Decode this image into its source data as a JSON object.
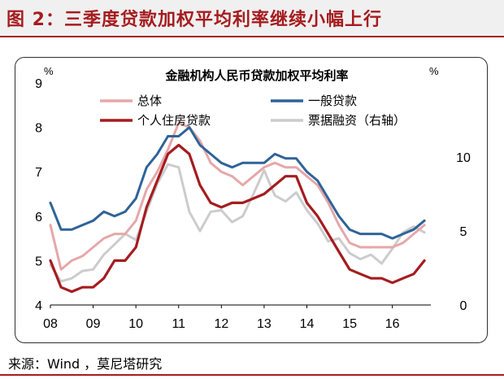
{
  "figure_title": "图 2：三季度贷款加权平均利率继续小幅上行",
  "source": "来源：Wind ，莫尼塔研究",
  "colors": {
    "header_accent": "#a51c1f",
    "total": "#e6a7a9",
    "general_loans": "#2f6399",
    "personal_housing": "#a51c1f",
    "bills": "#cccccc"
  },
  "chart_data": {
    "type": "line",
    "title": "金融机构人民币贷款加权平均利率",
    "left_unit": "%",
    "right_unit": "%",
    "ylim_left": [
      4,
      9
    ],
    "ylim_right": [
      0,
      15
    ],
    "yticks_left": [
      "4",
      "5",
      "6",
      "7",
      "8",
      "9"
    ],
    "yticks_right": [
      "0",
      "5",
      "10"
    ],
    "xlim": [
      2008.0,
      2016.9
    ],
    "xticks": [
      "08",
      "09",
      "10",
      "11",
      "12",
      "13",
      "14",
      "15",
      "16"
    ],
    "grid": false,
    "legend_position": "top",
    "series": [
      {
        "name": "总体",
        "axis": "left",
        "color_key": "total",
        "x": [
          2008.0,
          2008.25,
          2008.5,
          2008.75,
          2009.0,
          2009.25,
          2009.5,
          2009.75,
          2010.0,
          2010.25,
          2010.5,
          2010.75,
          2011.0,
          2011.25,
          2011.5,
          2011.75,
          2012.0,
          2012.25,
          2012.5,
          2012.75,
          2013.0,
          2013.25,
          2013.5,
          2013.75,
          2014.0,
          2014.25,
          2014.5,
          2014.75,
          2015.0,
          2015.25,
          2015.5,
          2015.75,
          2016.0,
          2016.25,
          2016.5,
          2016.75
        ],
        "values": [
          5.8,
          4.8,
          5.0,
          5.1,
          5.3,
          5.5,
          5.6,
          5.6,
          5.9,
          6.6,
          7.0,
          7.5,
          8.1,
          8.0,
          7.7,
          7.2,
          7.0,
          6.9,
          6.7,
          6.9,
          7.1,
          7.2,
          7.1,
          7.1,
          6.9,
          6.7,
          6.3,
          5.8,
          5.4,
          5.3,
          5.3,
          5.3,
          5.3,
          5.4,
          5.6,
          5.8
        ]
      },
      {
        "name": "一般贷款",
        "axis": "left",
        "color_key": "general_loans",
        "x": [
          2008.0,
          2008.25,
          2008.5,
          2008.75,
          2009.0,
          2009.25,
          2009.5,
          2009.75,
          2010.0,
          2010.25,
          2010.5,
          2010.75,
          2011.0,
          2011.25,
          2011.5,
          2011.75,
          2012.0,
          2012.25,
          2012.5,
          2012.75,
          2013.0,
          2013.25,
          2013.5,
          2013.75,
          2014.0,
          2014.25,
          2014.5,
          2014.75,
          2015.0,
          2015.25,
          2015.5,
          2015.75,
          2016.0,
          2016.25,
          2016.5,
          2016.75
        ],
        "values": [
          6.3,
          5.7,
          5.7,
          5.8,
          5.9,
          6.1,
          6.0,
          6.1,
          6.4,
          7.1,
          7.4,
          7.8,
          7.8,
          8.0,
          7.6,
          7.4,
          7.2,
          7.1,
          7.2,
          7.2,
          7.2,
          7.4,
          7.3,
          7.3,
          7.0,
          6.8,
          6.4,
          6.0,
          5.7,
          5.6,
          5.6,
          5.6,
          5.5,
          5.6,
          5.7,
          5.9
        ]
      },
      {
        "name": "个人住房贷款",
        "axis": "left",
        "color_key": "personal_housing",
        "x": [
          2008.0,
          2008.25,
          2008.5,
          2008.75,
          2009.0,
          2009.25,
          2009.5,
          2009.75,
          2010.0,
          2010.25,
          2010.5,
          2010.75,
          2011.0,
          2011.25,
          2011.5,
          2011.75,
          2012.0,
          2012.25,
          2012.5,
          2012.75,
          2013.0,
          2013.25,
          2013.5,
          2013.75,
          2014.0,
          2014.25,
          2014.5,
          2014.75,
          2015.0,
          2015.25,
          2015.5,
          2015.75,
          2016.0,
          2016.25,
          2016.5,
          2016.75
        ],
        "values": [
          5.0,
          4.4,
          4.3,
          4.4,
          4.4,
          4.6,
          5.0,
          5.0,
          5.3,
          6.2,
          6.8,
          7.4,
          7.6,
          7.4,
          6.7,
          6.3,
          6.2,
          6.3,
          6.3,
          6.4,
          6.5,
          6.7,
          6.9,
          6.9,
          6.3,
          6.0,
          5.6,
          5.2,
          4.8,
          4.7,
          4.6,
          4.6,
          4.5,
          4.6,
          4.7,
          5.0
        ]
      },
      {
        "name": "票据融资（右轴）",
        "axis": "right",
        "color_key": "bills",
        "x": [
          2008.0,
          2008.25,
          2008.5,
          2008.75,
          2009.0,
          2009.25,
          2009.5,
          2009.75,
          2010.0,
          2010.25,
          2010.5,
          2010.75,
          2011.0,
          2011.25,
          2011.5,
          2011.75,
          2012.0,
          2012.25,
          2012.5,
          2012.75,
          2013.0,
          2013.25,
          2013.5,
          2013.75,
          2014.0,
          2014.25,
          2014.5,
          2014.75,
          2015.0,
          2015.25,
          2015.5,
          2015.75,
          2016.0,
          2016.25,
          2016.5,
          2016.75
        ],
        "values": [
          2.7,
          1.6,
          1.8,
          2.3,
          2.4,
          3.4,
          4.1,
          4.8,
          4.4,
          6.3,
          8.2,
          9.5,
          9.3,
          6.3,
          5.0,
          6.3,
          6.4,
          5.6,
          6.0,
          7.5,
          9.1,
          7.4,
          7.0,
          7.6,
          6.4,
          5.5,
          4.3,
          4.5,
          3.5,
          3.1,
          3.4,
          2.8,
          3.8,
          4.9,
          5.3,
          4.9
        ]
      }
    ]
  }
}
